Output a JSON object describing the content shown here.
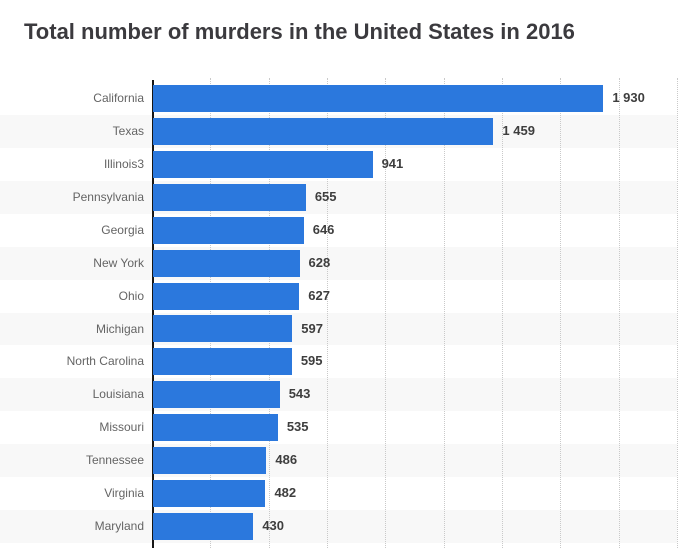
{
  "title": "Total number of murders in the United States in 2016",
  "colors": {
    "bar": "#2b78dd",
    "row_band": "#f8f8f8",
    "axis_line": "#161616",
    "gridline": "#c9c9c9",
    "category_label": "#646464",
    "value_label": "#3e3e3e",
    "title": "#3b3a3e",
    "background": "#ffffff"
  },
  "chart_data": {
    "type": "bar",
    "orientation": "horizontal",
    "title": "Total number of murders in the United States in 2016",
    "categories": [
      "California",
      "Texas",
      "Illinois3",
      "Pennsylvania",
      "Georgia",
      "New York",
      "Ohio",
      "Michigan",
      "North Carolina",
      "Louisiana",
      "Missouri",
      "Tennessee",
      "Virginia",
      "Maryland"
    ],
    "values": [
      1930,
      1459,
      941,
      655,
      646,
      628,
      627,
      597,
      595,
      543,
      535,
      486,
      482,
      430
    ],
    "display_values": [
      "1 930",
      "1 459",
      "941",
      "655",
      "646",
      "628",
      "627",
      "597",
      "595",
      "543",
      "535",
      "486",
      "482",
      "430"
    ],
    "xlabel": "",
    "ylabel": "",
    "xlim": [
      0,
      2250
    ],
    "grid_interval": 250,
    "grid": "vertical-dotted",
    "legend": "none",
    "row_striping": "alternate-even-rows-gray",
    "bar_labels": "outside-end"
  }
}
